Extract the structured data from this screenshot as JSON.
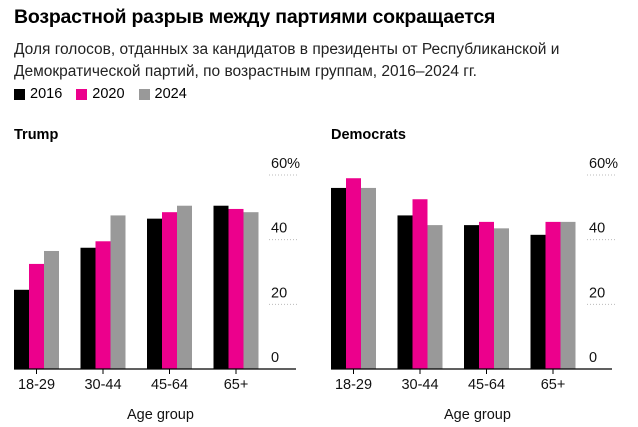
{
  "header": {
    "title": "Возрастной разрыв между партиями сокращается",
    "subtitle": "Доля голосов, отданных за кандидатов в президенты от Республиканской и Демократической партий, по возрастным группам, 2016–2024 гг."
  },
  "legend": [
    {
      "label": "2016",
      "color": "#000000"
    },
    {
      "label": "2020",
      "color": "#ec008c"
    },
    {
      "label": "2024",
      "color": "#999999"
    }
  ],
  "chart_data": [
    {
      "type": "bar",
      "title": "Trump",
      "xlabel": "Age group",
      "ylabel": "",
      "categories": [
        "18-29",
        "30-44",
        "45-64",
        "65+"
      ],
      "series": [
        {
          "name": "2016",
          "values": [
            24.5,
            37.5,
            46.5,
            50.5
          ]
        },
        {
          "name": "2020",
          "values": [
            32.5,
            39.5,
            48.5,
            49.5
          ]
        },
        {
          "name": "2024",
          "values": [
            36.5,
            47.5,
            50.5,
            48.5
          ]
        }
      ],
      "ylim": [
        0,
        60
      ],
      "yticks": [
        0,
        20,
        40,
        60
      ],
      "ytick_labels": [
        "0",
        "20",
        "40",
        "60%"
      ]
    },
    {
      "type": "bar",
      "title": "Democrats",
      "xlabel": "Age group",
      "ylabel": "",
      "categories": [
        "18-29",
        "30-44",
        "45-64",
        "65+"
      ],
      "series": [
        {
          "name": "2016",
          "values": [
            56,
            47.5,
            44.5,
            41.5
          ]
        },
        {
          "name": "2020",
          "values": [
            59,
            52.5,
            45.5,
            45.5
          ]
        },
        {
          "name": "2024",
          "values": [
            56,
            44.5,
            43.5,
            45.5
          ]
        }
      ],
      "ylim": [
        0,
        60
      ],
      "yticks": [
        0,
        20,
        40,
        60
      ],
      "ytick_labels": [
        "0",
        "20",
        "40",
        "60%"
      ]
    }
  ]
}
